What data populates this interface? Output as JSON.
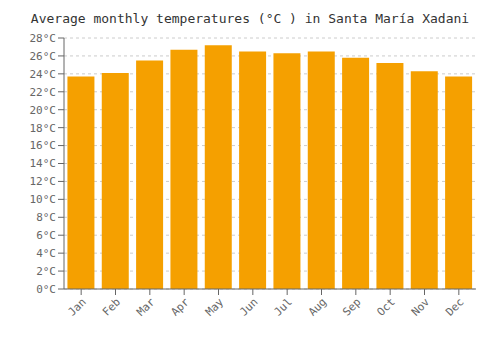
{
  "chart_data": {
    "type": "bar",
    "title": "Average monthly temperatures (°C ) in Santa María Xadani",
    "categories": [
      "Jan",
      "Feb",
      "Mar",
      "Apr",
      "May",
      "Jun",
      "Jul",
      "Aug",
      "Sep",
      "Oct",
      "Nov",
      "Dec"
    ],
    "values": [
      23.7,
      24.1,
      25.5,
      26.7,
      27.2,
      26.5,
      26.3,
      26.5,
      25.8,
      25.2,
      24.3,
      23.7
    ],
    "color": "#F5A000",
    "ylim": [
      0,
      28
    ],
    "yticks": [
      {
        "value": 0,
        "label": "0°C"
      },
      {
        "value": 2,
        "label": "2°C"
      },
      {
        "value": 4,
        "label": "4°C"
      },
      {
        "value": 6,
        "label": "6°C"
      },
      {
        "value": 8,
        "label": "8°C"
      },
      {
        "value": 10,
        "label": "10°C"
      },
      {
        "value": 12,
        "label": "12°C"
      },
      {
        "value": 14,
        "label": "14°C"
      },
      {
        "value": 16,
        "label": "16°C"
      },
      {
        "value": 18,
        "label": "18°C"
      },
      {
        "value": 20,
        "label": "20°C"
      },
      {
        "value": 22,
        "label": "22°C"
      },
      {
        "value": 24,
        "label": "24°C"
      },
      {
        "value": 26,
        "label": "26°C"
      },
      {
        "value": 28,
        "label": "28°C"
      }
    ],
    "grid": true
  }
}
